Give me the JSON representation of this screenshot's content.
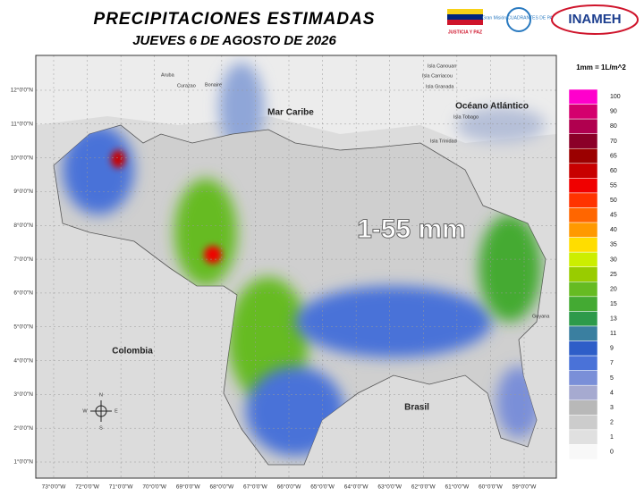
{
  "header": {
    "title": "PRECIPITACIONES ESTIMADAS",
    "date": "JUEVES 6 DE AGOSTO DE 2026",
    "logos": [
      "JUSTICIA Y PAZ",
      "Gran Misión CUADRANTES DE PAZ",
      "INAMEH"
    ]
  },
  "map": {
    "labels": {
      "mar_caribe": "Mar Caribe",
      "oceano_atlantico": "Océano Atlántico",
      "colombia": "Colombia",
      "brasil": "Brasil",
      "range": "1-55 mm"
    },
    "islands": [
      "Aruba",
      "Curazao",
      "Bonaire",
      "Isla Canouan",
      "Isla Carriacou",
      "Isla Granada",
      "Isla Tobago",
      "Isla Trinidad",
      "Guyana"
    ],
    "compass": [
      "N",
      "S",
      "E",
      "W"
    ],
    "lat_ticks": [
      "12°0'0\"N",
      "11°0'0\"N",
      "10°0'0\"N",
      "9°0'0\"N",
      "8°0'0\"N",
      "7°0'0\"N",
      "6°0'0\"N",
      "5°0'0\"N",
      "4°0'0\"N",
      "3°0'0\"N",
      "2°0'0\"N",
      "1°0'0\"N"
    ],
    "lon_ticks": [
      "73°0'0\"W",
      "72°0'0\"W",
      "71°0'0\"W",
      "70°0'0\"W",
      "69°0'0\"W",
      "68°0'0\"W",
      "67°0'0\"W",
      "66°0'0\"W",
      "65°0'0\"W",
      "64°0'0\"W",
      "63°0'0\"W",
      "62°0'0\"W",
      "61°0'0\"W",
      "60°0'0\"W",
      "59°0'0\"W"
    ]
  },
  "legend": {
    "unit": "1mm = 1L/m^2",
    "levels": [
      {
        "label": "100",
        "color": "#ff00cc"
      },
      {
        "label": "90",
        "color": "#d4006e"
      },
      {
        "label": "80",
        "color": "#b0004f"
      },
      {
        "label": "70",
        "color": "#8b0028"
      },
      {
        "label": "65",
        "color": "#9b0000"
      },
      {
        "label": "60",
        "color": "#c80000"
      },
      {
        "label": "55",
        "color": "#f00000"
      },
      {
        "label": "50",
        "color": "#ff3300"
      },
      {
        "label": "45",
        "color": "#ff6600"
      },
      {
        "label": "40",
        "color": "#ff9900"
      },
      {
        "label": "35",
        "color": "#ffdd00"
      },
      {
        "label": "30",
        "color": "#ccee00"
      },
      {
        "label": "25",
        "color": "#99cc00"
      },
      {
        "label": "20",
        "color": "#66bb22"
      },
      {
        "label": "15",
        "color": "#44aa33"
      },
      {
        "label": "13",
        "color": "#2d9a4a"
      },
      {
        "label": "11",
        "color": "#3a7fa0"
      },
      {
        "label": "9",
        "color": "#2e5ec8"
      },
      {
        "label": "7",
        "color": "#4a72d8"
      },
      {
        "label": "5",
        "color": "#7a8fd8"
      },
      {
        "label": "4",
        "color": "#a6aad0"
      },
      {
        "label": "3",
        "color": "#b8b8b8"
      },
      {
        "label": "2",
        "color": "#cccccc"
      },
      {
        "label": "1",
        "color": "#e0e0e0"
      },
      {
        "label": "0",
        "color": "#f8f8f8"
      }
    ]
  }
}
